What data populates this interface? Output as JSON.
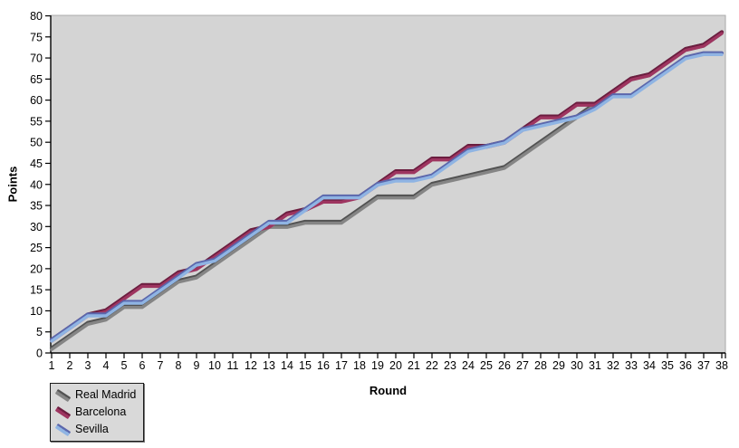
{
  "chart_data": {
    "type": "line",
    "title": "",
    "xlabel": "Round",
    "ylabel": "Points",
    "x": [
      1,
      2,
      3,
      4,
      5,
      6,
      7,
      8,
      9,
      10,
      11,
      12,
      13,
      14,
      15,
      16,
      17,
      18,
      19,
      20,
      21,
      22,
      23,
      24,
      25,
      26,
      27,
      28,
      29,
      30,
      31,
      32,
      33,
      34,
      35,
      36,
      37,
      38
    ],
    "y_ticks": [
      0,
      5,
      10,
      15,
      20,
      25,
      30,
      35,
      40,
      45,
      50,
      55,
      60,
      65,
      70,
      75,
      80
    ],
    "xlim": [
      1,
      38
    ],
    "ylim": [
      0,
      80
    ],
    "grid": false,
    "legend_position": "bottom-left",
    "plot_bg_color": "#d4d4d4",
    "page_bg_color": "#ffffff",
    "series": [
      {
        "name": "Real Madrid",
        "color": "#858585",
        "edge_color": "#525252",
        "values": [
          1,
          4,
          7,
          8,
          11,
          11,
          14,
          17,
          18,
          21,
          24,
          27,
          30,
          30,
          31,
          31,
          31,
          34,
          37,
          37,
          37,
          40,
          41,
          42,
          43,
          44,
          47,
          50,
          53,
          56,
          59,
          62,
          65,
          66,
          69,
          72,
          73,
          76
        ]
      },
      {
        "name": "Barcelona",
        "color": "#9e3560",
        "edge_color": "#6b1d3f",
        "values": [
          3,
          6,
          9,
          10,
          13,
          16,
          16,
          19,
          20,
          23,
          26,
          29,
          30,
          33,
          34,
          36,
          36,
          37,
          40,
          43,
          43,
          46,
          46,
          49,
          49,
          50,
          53,
          56,
          56,
          59,
          59,
          62,
          65,
          66,
          69,
          72,
          73,
          76
        ]
      },
      {
        "name": "Sevilla",
        "color": "#8fb4e3",
        "edge_color": "#5b67ac",
        "values": [
          3,
          6,
          9,
          9,
          12,
          12,
          15,
          18,
          21,
          22,
          25,
          28,
          31,
          31,
          34,
          37,
          37,
          37,
          40,
          41,
          41,
          42,
          45,
          48,
          49,
          50,
          53,
          54,
          55,
          56,
          58,
          61,
          61,
          64,
          67,
          70,
          71,
          71
        ]
      }
    ],
    "final_values": {
      "Real Madrid": 76,
      "Barcelona": 76,
      "Sevilla": 71
    }
  }
}
